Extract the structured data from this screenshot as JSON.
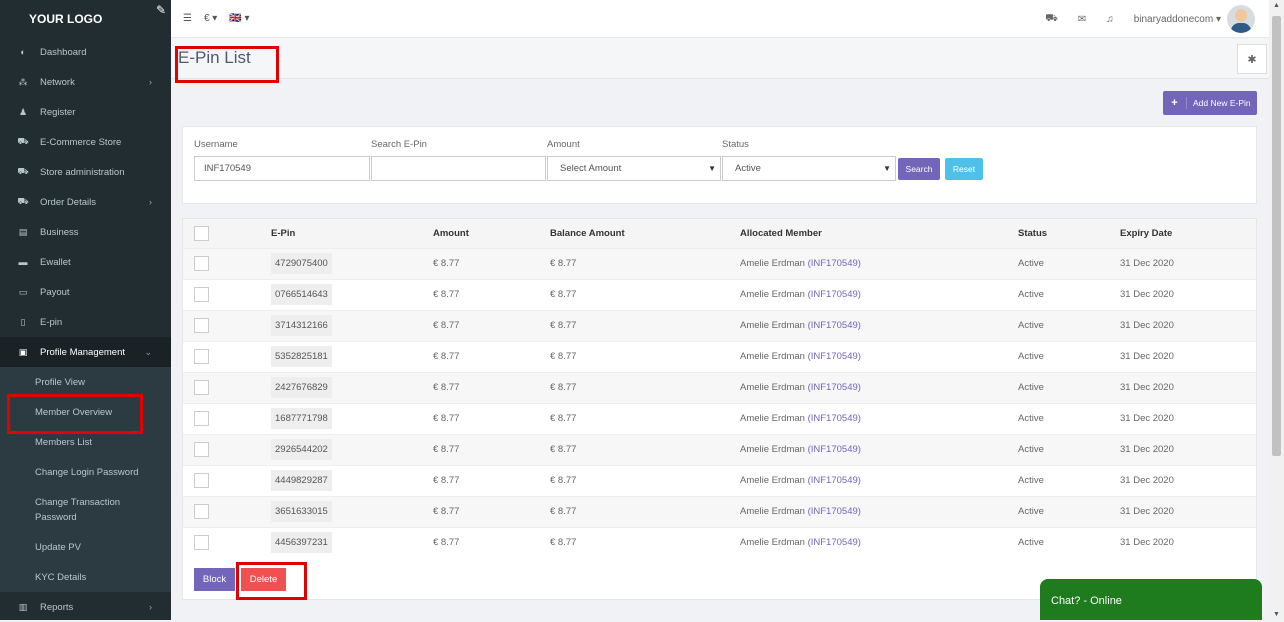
{
  "app": {
    "logo": "YOUR LOGO"
  },
  "sidebar": {
    "items": [
      {
        "label": "Dashboard",
        "icon": "dashboard-icon",
        "glyph": "◐"
      },
      {
        "label": "Network",
        "icon": "sitemap-icon",
        "glyph": "⁂",
        "arrow": true
      },
      {
        "label": "Register",
        "icon": "user-add-icon",
        "glyph": "♟"
      },
      {
        "label": "E-Commerce Store",
        "icon": "cart-icon",
        "glyph": "⛟"
      },
      {
        "label": "Store administration",
        "icon": "cart-admin-icon",
        "glyph": "⛟"
      },
      {
        "label": "Order Details",
        "icon": "cart-icon",
        "glyph": "⛟",
        "arrow": true
      },
      {
        "label": "Business",
        "icon": "building-icon",
        "glyph": "▤"
      },
      {
        "label": "Ewallet",
        "icon": "briefcase-icon",
        "glyph": "▬"
      },
      {
        "label": "Payout",
        "icon": "money-icon",
        "glyph": "▭"
      },
      {
        "label": "E-pin",
        "icon": "bookmark-icon",
        "glyph": "▯"
      },
      {
        "label": "Profile Management",
        "icon": "id-card-icon",
        "glyph": "▣",
        "arrow": true
      }
    ],
    "submenu": [
      "Profile View",
      "Member Overview",
      "Members List",
      "Change Login Password",
      "Change Transaction Password",
      "Update PV",
      "KYC Details"
    ],
    "bottom": {
      "label": "Reports",
      "icon": "bar-chart-icon",
      "glyph": "▥"
    }
  },
  "topbar": {
    "menu_glyph": "☰",
    "currency": "€ ▾",
    "language": "🇬🇧 ▾",
    "cart_glyph": "⛟",
    "mail_glyph": "✉",
    "bell_glyph": "♫",
    "username": "binaryaddonecom ▾"
  },
  "page": {
    "title": "E-Pin List",
    "gear_glyph": "✱"
  },
  "add_button": {
    "plus": "+",
    "label": "Add New E-Pin"
  },
  "filter": {
    "username_label": "Username",
    "username_value": "INF170549",
    "epin_label": "Search E-Pin",
    "epin_value": "",
    "amount_label": "Amount",
    "amount_value": "Select Amount",
    "status_label": "Status",
    "status_value": "Active",
    "arrow": "▼",
    "search_label": "Search",
    "reset_label": "Reset"
  },
  "table": {
    "headers": [
      "E-Pin",
      "Amount",
      "Balance Amount",
      "Allocated Member",
      "Status",
      "Expiry Date"
    ],
    "rows": [
      {
        "pin": "4729075400",
        "amount": "€ 8.77",
        "balance": "€ 8.77",
        "member": "Amelie Erdman ",
        "member_id": "(INF170549)",
        "status": "Active",
        "expiry": "31 Dec 2020"
      },
      {
        "pin": "0766514643",
        "amount": "€ 8.77",
        "balance": "€ 8.77",
        "member": "Amelie Erdman ",
        "member_id": "(INF170549)",
        "status": "Active",
        "expiry": "31 Dec 2020"
      },
      {
        "pin": "3714312166",
        "amount": "€ 8.77",
        "balance": "€ 8.77",
        "member": "Amelie Erdman ",
        "member_id": "(INF170549)",
        "status": "Active",
        "expiry": "31 Dec 2020"
      },
      {
        "pin": "5352825181",
        "amount": "€ 8.77",
        "balance": "€ 8.77",
        "member": "Amelie Erdman ",
        "member_id": "(INF170549)",
        "status": "Active",
        "expiry": "31 Dec 2020"
      },
      {
        "pin": "2427676829",
        "amount": "€ 8.77",
        "balance": "€ 8.77",
        "member": "Amelie Erdman ",
        "member_id": "(INF170549)",
        "status": "Active",
        "expiry": "31 Dec 2020"
      },
      {
        "pin": "1687771798",
        "amount": "€ 8.77",
        "balance": "€ 8.77",
        "member": "Amelie Erdman ",
        "member_id": "(INF170549)",
        "status": "Active",
        "expiry": "31 Dec 2020"
      },
      {
        "pin": "2926544202",
        "amount": "€ 8.77",
        "balance": "€ 8.77",
        "member": "Amelie Erdman ",
        "member_id": "(INF170549)",
        "status": "Active",
        "expiry": "31 Dec 2020"
      },
      {
        "pin": "4449829287",
        "amount": "€ 8.77",
        "balance": "€ 8.77",
        "member": "Amelie Erdman ",
        "member_id": "(INF170549)",
        "status": "Active",
        "expiry": "31 Dec 2020"
      },
      {
        "pin": "3651633015",
        "amount": "€ 8.77",
        "balance": "€ 8.77",
        "member": "Amelie Erdman ",
        "member_id": "(INF170549)",
        "status": "Active",
        "expiry": "31 Dec 2020"
      },
      {
        "pin": "4456397231",
        "amount": "€ 8.77",
        "balance": "€ 8.77",
        "member": "Amelie Erdman ",
        "member_id": "(INF170549)",
        "status": "Active",
        "expiry": "31 Dec 2020"
      }
    ]
  },
  "actions": {
    "block_label": "Block",
    "delete_label": "Delete"
  },
  "chat": {
    "label": "Chat? - Online"
  },
  "colors": {
    "accent": "#7265ba",
    "danger": "#f05050",
    "info": "#4fc1e9",
    "sidebar": "#222d32",
    "chat": "#1e7b1e",
    "highlight": "#e30000"
  }
}
